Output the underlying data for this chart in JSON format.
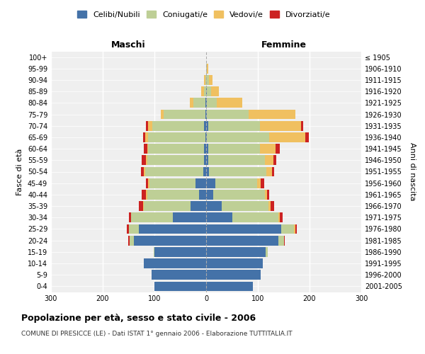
{
  "age_groups": [
    "0-4",
    "5-9",
    "10-14",
    "15-19",
    "20-24",
    "25-29",
    "30-34",
    "35-39",
    "40-44",
    "45-49",
    "50-54",
    "55-59",
    "60-64",
    "65-69",
    "70-74",
    "75-79",
    "80-84",
    "85-89",
    "90-94",
    "95-99",
    "100+"
  ],
  "birth_years": [
    "2001-2005",
    "1996-2000",
    "1991-1995",
    "1986-1990",
    "1981-1985",
    "1976-1980",
    "1971-1975",
    "1966-1970",
    "1961-1965",
    "1956-1960",
    "1951-1955",
    "1946-1950",
    "1941-1945",
    "1936-1940",
    "1931-1935",
    "1926-1930",
    "1921-1925",
    "1916-1920",
    "1911-1915",
    "1906-1910",
    "≤ 1905"
  ],
  "maschi": {
    "celibe": [
      100,
      105,
      120,
      100,
      140,
      130,
      65,
      30,
      14,
      20,
      6,
      4,
      4,
      2,
      4,
      2,
      2,
      0,
      0,
      0,
      0
    ],
    "coniugato": [
      0,
      0,
      0,
      2,
      8,
      20,
      80,
      90,
      100,
      90,
      112,
      110,
      108,
      110,
      100,
      80,
      22,
      4,
      2,
      0,
      0
    ],
    "vedovo": [
      0,
      0,
      0,
      0,
      0,
      0,
      0,
      2,
      2,
      2,
      2,
      2,
      2,
      6,
      8,
      6,
      8,
      6,
      2,
      0,
      0
    ],
    "divorziato": [
      0,
      0,
      0,
      0,
      2,
      4,
      4,
      8,
      8,
      4,
      6,
      8,
      6,
      4,
      4,
      0,
      0,
      0,
      0,
      0,
      0
    ]
  },
  "femmine": {
    "nubile": [
      90,
      105,
      110,
      115,
      140,
      145,
      50,
      30,
      14,
      18,
      6,
      4,
      4,
      2,
      4,
      2,
      2,
      2,
      0,
      0,
      0
    ],
    "coniugata": [
      0,
      0,
      0,
      4,
      10,
      25,
      90,
      90,
      100,
      80,
      110,
      110,
      100,
      120,
      100,
      80,
      18,
      8,
      6,
      2,
      0
    ],
    "vedova": [
      0,
      0,
      0,
      0,
      0,
      2,
      2,
      4,
      4,
      8,
      12,
      16,
      30,
      70,
      80,
      90,
      50,
      14,
      6,
      2,
      0
    ],
    "divorziata": [
      0,
      0,
      0,
      0,
      2,
      4,
      6,
      8,
      4,
      6,
      4,
      6,
      8,
      6,
      4,
      0,
      0,
      0,
      0,
      0,
      0
    ]
  },
  "colors": {
    "celibe": "#4472A8",
    "coniugato": "#BECF96",
    "vedovo": "#F0C060",
    "divorziato": "#CC2222"
  },
  "xlim": 300,
  "title": "Popolazione per età, sesso e stato civile - 2006",
  "subtitle": "COMUNE DI PRESICCE (LE) - Dati ISTAT 1° gennaio 2006 - Elaborazione TUTTITALIA.IT",
  "ylabel_left": "Fasce di età",
  "ylabel_right": "Anni di nascita",
  "xlabel_left": "Maschi",
  "xlabel_right": "Femmine",
  "legend_labels": [
    "Celibi/Nubili",
    "Coniugati/e",
    "Vedovi/e",
    "Divorziati/e"
  ],
  "bg_color": "#FFFFFF",
  "plot_bg_color": "#EFEFEF"
}
